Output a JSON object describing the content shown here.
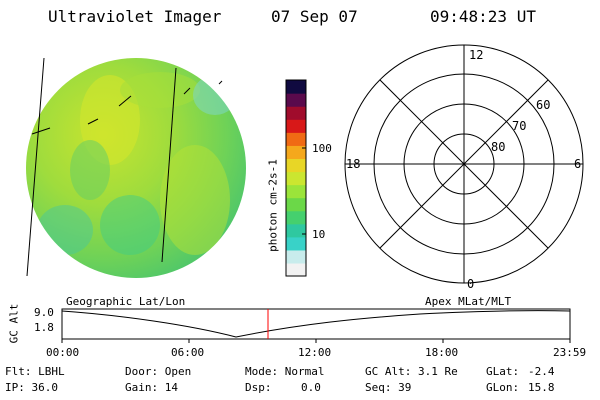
{
  "header": {
    "instrument": "Ultraviolet Imager",
    "date": "07 Sep 07",
    "time": "09:48:23 UT"
  },
  "colorbar": {
    "unit_label": "photon cm-2s-1",
    "ticks": [
      "100",
      "10"
    ],
    "colors": [
      "#f2f2f2",
      "#c8ecec",
      "#39d2c8",
      "#2fc8a0",
      "#45d06e",
      "#6bd848",
      "#9be43a",
      "#cbe630",
      "#e8d626",
      "#f5a81c",
      "#f06a14",
      "#d81818",
      "#a00c2c",
      "#5a0a4c",
      "#100a40"
    ]
  },
  "polar": {
    "mlt_labels": {
      "top": "12",
      "left": "18",
      "right": "6",
      "bottom": "0"
    },
    "lat_labels": [
      "60",
      "70",
      "80"
    ]
  },
  "timeline": {
    "left_label": "Geographic Lat/Lon",
    "right_label": "Apex MLat/MLT",
    "axis_title": "GC Alt",
    "y_ticks": [
      "9.0",
      "1.8"
    ],
    "x_ticks": [
      "00:00",
      "06:00",
      "12:00",
      "18:00",
      "23:59"
    ]
  },
  "info": {
    "flt": "Flt: LBHL",
    "ip": "IP: 36.0",
    "door": "Door: Open",
    "gain": "Gain: 14",
    "mode": "Mode: Normal",
    "dsp_label": "Dsp:",
    "dsp_value": "0.0",
    "gc_alt": "GC Alt: 3.1 Re",
    "seq": "Seq: 39",
    "glat": "GLat:",
    "glat_value": "-2.4",
    "glon": "GLon:",
    "glon_value": "15.8"
  }
}
